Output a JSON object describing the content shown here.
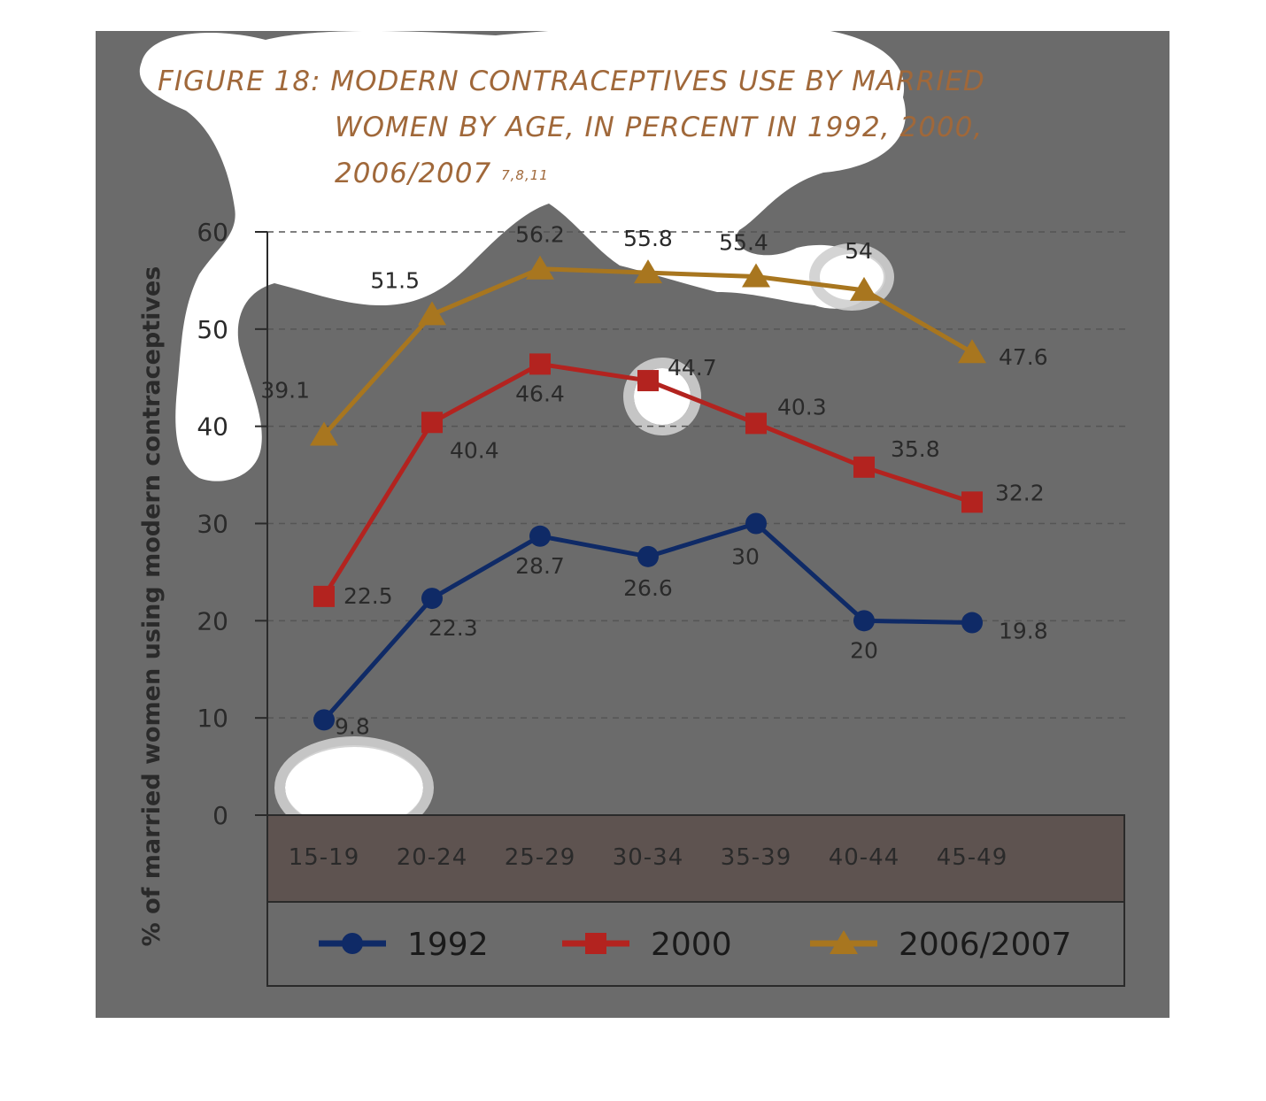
{
  "figure": {
    "title_line1": "FIGURE 18: MODERN CONTRACEPTIVES USE BY MARRIED",
    "title_line2": "WOMEN BY AGE, IN PERCENT IN 1992, 2000,",
    "title_line3": "2006/2007",
    "title_refs": "7,8,11"
  },
  "colors": {
    "panel": "#6b6b6b",
    "title": "#a0683a",
    "series_1992": "#0f2a66",
    "series_2000": "#b3231f",
    "series_2006": "#a8761f",
    "axis_text": "#2a2a2a",
    "xaxis_band": "#5e5350"
  },
  "chart_data": {
    "type": "line",
    "categories": [
      "15-19",
      "20-24",
      "25-29",
      "30-34",
      "35-39",
      "40-44",
      "45-49"
    ],
    "series": [
      {
        "name": "1992",
        "marker": "circle",
        "values": [
          9.8,
          22.3,
          28.7,
          26.6,
          30,
          20,
          19.8
        ]
      },
      {
        "name": "2000",
        "marker": "square",
        "values": [
          22.5,
          40.4,
          46.4,
          44.7,
          40.3,
          35.8,
          32.2
        ]
      },
      {
        "name": "2006/2007",
        "marker": "triangle",
        "values": [
          39.1,
          51.5,
          56.2,
          55.8,
          55.4,
          54,
          47.6
        ]
      }
    ],
    "ylabel": "% of married women using modern contraceptives",
    "xlabel": "",
    "ylim": [
      0,
      60
    ],
    "yticks": [
      "0",
      "10",
      "20",
      "30",
      "40",
      "50",
      "60"
    ],
    "grid": true,
    "legend_position": "bottom"
  }
}
